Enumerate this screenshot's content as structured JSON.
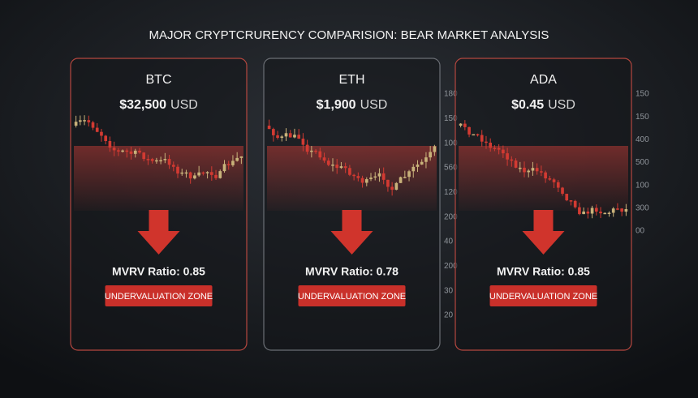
{
  "title": "MAJOR CRYPTCRURENCY COMPARISION: BEAR MARKET ANALYSIS",
  "panels": [
    {
      "name": "BTC",
      "price": "$32,500",
      "unit": "USD",
      "ratio": "MVRV Ratio: 0.85",
      "zone": "UNDERVALUATION ZONE",
      "scale": []
    },
    {
      "name": "ETH",
      "price": "$1,900",
      "unit": "USD",
      "ratio": "MVRV Ratio: 0.78",
      "zone": "UNDERVALUATION ZONE",
      "scale": [
        "180",
        "150",
        "100",
        "560",
        "120",
        "200",
        "40",
        "200",
        "30",
        "20"
      ]
    },
    {
      "name": "ADA",
      "price": "$0.45",
      "unit": "USD",
      "ratio": "MVRV Ratio: 0.85",
      "zone": "UNDERVALUATION ZONE",
      "scale": [
        "150",
        "150",
        "400",
        "500",
        "100",
        "300",
        "00"
      ]
    }
  ]
}
